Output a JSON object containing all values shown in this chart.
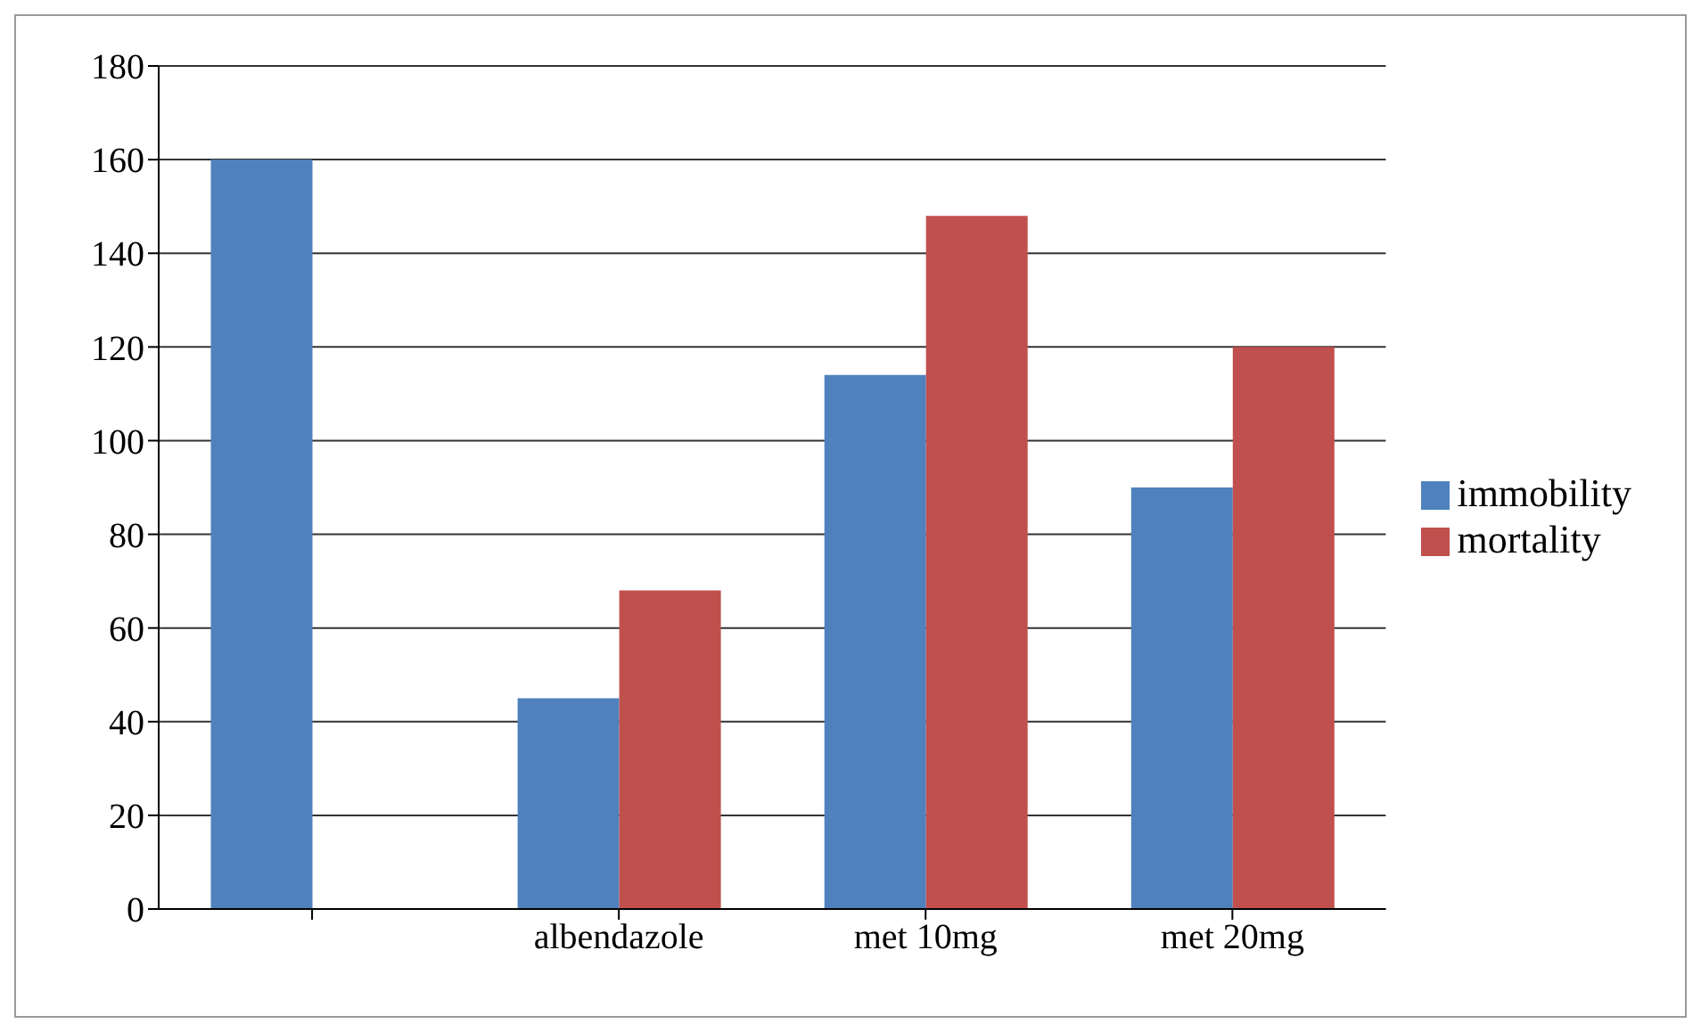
{
  "chart_data": {
    "type": "bar",
    "categories": [
      null,
      "albendazole",
      "met 10mg",
      "met 20mg"
    ],
    "series": [
      {
        "name": "immobility",
        "color": "#4f81bd",
        "values": [
          160,
          45,
          114,
          90
        ]
      },
      {
        "name": "mortality",
        "color": "#c0504d",
        "values": [
          null,
          68,
          148,
          120
        ]
      }
    ],
    "ylim": [
      0,
      180
    ],
    "yticks": [
      0,
      20,
      40,
      60,
      80,
      100,
      120,
      140,
      160,
      180
    ],
    "grid": "y",
    "legend": "right"
  }
}
